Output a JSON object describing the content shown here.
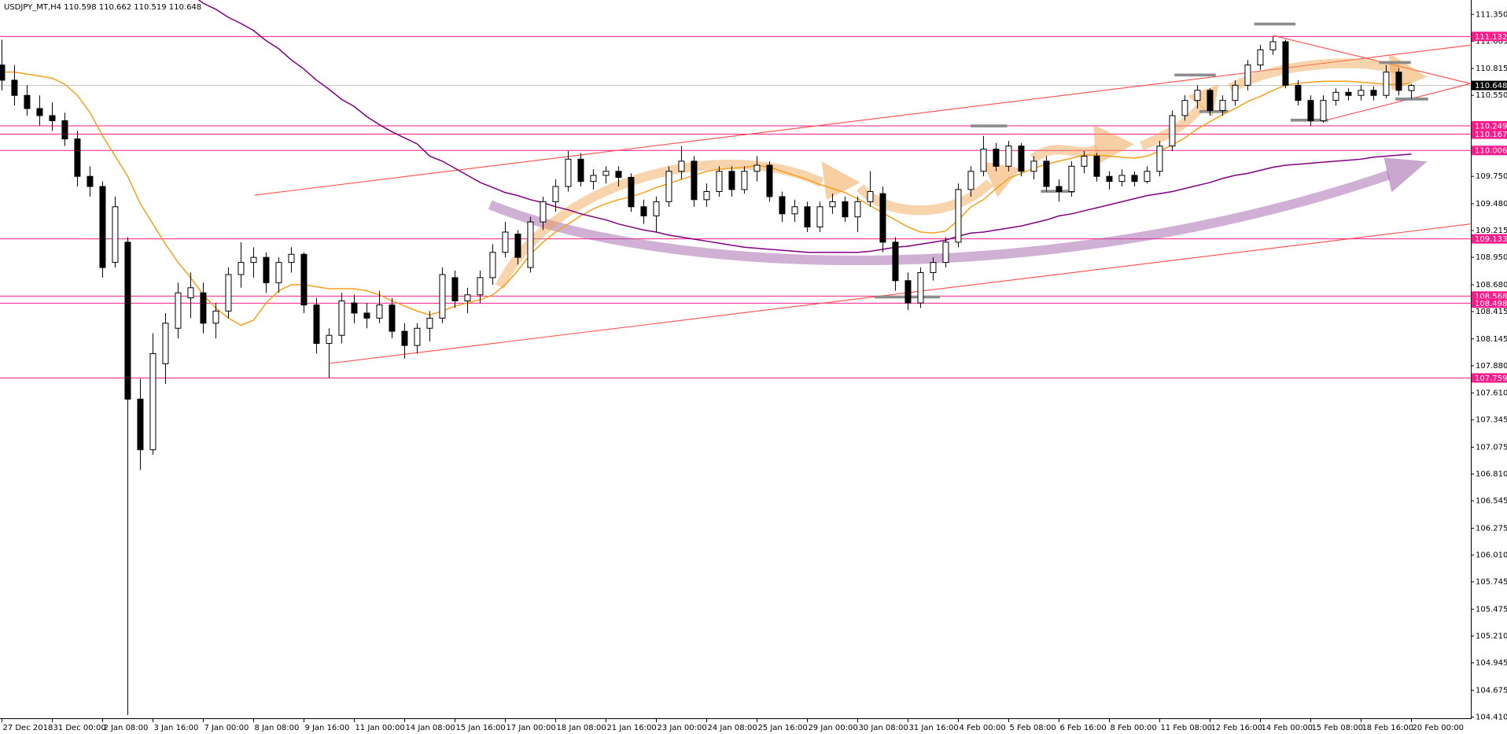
{
  "chart_data": {
    "type": "candlestick",
    "title": "USDJPY_MT,H4  110.598 110.662 110.519 110.648",
    "categories": [
      "27 Dec 2018",
      null,
      null,
      null,
      "31 Dec 00:00",
      null,
      null,
      null,
      "2 Jan 08:00",
      null,
      null,
      null,
      "3 Jan 16:00",
      null,
      null,
      null,
      "7 Jan 00:00",
      null,
      null,
      null,
      "8 Jan 08:00",
      null,
      null,
      null,
      "9 Jan 16:00",
      null,
      null,
      null,
      "11 Jan 00:00",
      null,
      null,
      null,
      "14 Jan 08:00",
      null,
      null,
      null,
      "15 Jan 16:00",
      null,
      null,
      null,
      "17 Jan 00:00",
      null,
      null,
      null,
      "18 Jan 08:00",
      null,
      null,
      null,
      "21 Jan 16:00",
      null,
      null,
      null,
      "23 Jan 00:00",
      null,
      null,
      null,
      "24 Jan 08:00",
      null,
      null,
      null,
      "25 Jan 16:00",
      null,
      null,
      null,
      "29 Jan 00:00",
      null,
      null,
      null,
      "30 Jan 08:00",
      null,
      null,
      null,
      "31 Jan 16:00",
      null,
      null,
      null,
      "4 Feb 00:00",
      null,
      null,
      null,
      "5 Feb 08:00",
      null,
      null,
      null,
      "6 Feb 16:00",
      null,
      null,
      null,
      "8 Feb 00:00",
      null,
      null,
      null,
      "11 Feb 08:00",
      null,
      null,
      null,
      "12 Feb 16:00",
      null,
      null,
      null,
      "14 Feb 00:00",
      null,
      null,
      null,
      "15 Feb 08:00",
      null,
      null,
      null,
      "18 Feb 16:00",
      null,
      null,
      null,
      "20 Feb 00:00"
    ],
    "ohlc": [
      [
        110.85,
        111.1,
        110.6,
        110.7
      ],
      [
        110.7,
        110.85,
        110.45,
        110.55
      ],
      [
        110.55,
        110.65,
        110.35,
        110.42
      ],
      [
        110.42,
        110.55,
        110.25,
        110.35
      ],
      [
        110.35,
        110.48,
        110.2,
        110.3
      ],
      [
        110.3,
        110.38,
        110.05,
        110.12
      ],
      [
        110.12,
        110.2,
        109.65,
        109.75
      ],
      [
        109.75,
        109.85,
        109.55,
        109.65
      ],
      [
        109.65,
        109.7,
        108.75,
        108.85
      ],
      [
        108.9,
        109.55,
        108.85,
        109.45
      ],
      [
        109.1,
        109.15,
        104.43,
        107.55
      ],
      [
        107.55,
        107.75,
        106.85,
        107.05
      ],
      [
        107.05,
        108.2,
        107.0,
        108.0
      ],
      [
        107.9,
        108.4,
        107.7,
        108.3
      ],
      [
        108.25,
        108.7,
        108.15,
        108.6
      ],
      [
        108.55,
        108.8,
        108.35,
        108.65
      ],
      [
        108.6,
        108.7,
        108.2,
        108.3
      ],
      [
        108.3,
        108.5,
        108.15,
        108.42
      ],
      [
        108.42,
        108.85,
        108.35,
        108.78
      ],
      [
        108.78,
        109.1,
        108.65,
        108.9
      ],
      [
        108.9,
        109.05,
        108.75,
        108.95
      ],
      [
        108.95,
        109.0,
        108.6,
        108.7
      ],
      [
        108.7,
        108.95,
        108.6,
        108.9
      ],
      [
        108.9,
        109.05,
        108.8,
        108.98
      ],
      [
        108.98,
        109.0,
        108.4,
        108.48
      ],
      [
        108.48,
        108.55,
        108.0,
        108.1
      ],
      [
        108.1,
        108.25,
        107.76,
        108.18
      ],
      [
        108.18,
        108.6,
        108.1,
        108.52
      ],
      [
        108.5,
        108.58,
        108.3,
        108.4
      ],
      [
        108.4,
        108.5,
        108.25,
        108.35
      ],
      [
        108.35,
        108.62,
        108.3,
        108.48
      ],
      [
        108.48,
        108.55,
        108.15,
        108.22
      ],
      [
        108.22,
        108.3,
        107.95,
        108.08
      ],
      [
        108.08,
        108.3,
        108.0,
        108.25
      ],
      [
        108.25,
        108.42,
        108.12,
        108.35
      ],
      [
        108.35,
        108.85,
        108.3,
        108.78
      ],
      [
        108.75,
        108.82,
        108.45,
        108.52
      ],
      [
        108.52,
        108.65,
        108.4,
        108.58
      ],
      [
        108.58,
        108.82,
        108.5,
        108.75
      ],
      [
        108.75,
        109.08,
        108.68,
        109.0
      ],
      [
        109.0,
        109.3,
        108.95,
        109.2
      ],
      [
        109.18,
        109.22,
        108.88,
        108.95
      ],
      [
        108.85,
        109.35,
        108.8,
        109.3
      ],
      [
        109.3,
        109.55,
        109.22,
        109.5
      ],
      [
        109.5,
        109.72,
        109.4,
        109.65
      ],
      [
        109.65,
        110.0,
        109.6,
        109.92
      ],
      [
        109.92,
        109.98,
        109.65,
        109.7
      ],
      [
        109.7,
        109.82,
        109.62,
        109.76
      ],
      [
        109.76,
        109.85,
        109.68,
        109.8
      ],
      [
        109.8,
        109.85,
        109.65,
        109.74
      ],
      [
        109.74,
        109.78,
        109.4,
        109.45
      ],
      [
        109.45,
        109.52,
        109.28,
        109.36
      ],
      [
        109.36,
        109.55,
        109.2,
        109.5
      ],
      [
        109.5,
        109.85,
        109.45,
        109.8
      ],
      [
        109.8,
        110.05,
        109.72,
        109.9
      ],
      [
        109.9,
        109.95,
        109.45,
        109.52
      ],
      [
        109.52,
        109.68,
        109.45,
        109.6
      ],
      [
        109.6,
        109.85,
        109.55,
        109.8
      ],
      [
        109.8,
        109.85,
        109.55,
        109.62
      ],
      [
        109.62,
        109.85,
        109.58,
        109.8
      ],
      [
        109.8,
        109.95,
        109.7,
        109.86
      ],
      [
        109.86,
        109.9,
        109.5,
        109.55
      ],
      [
        109.55,
        109.6,
        109.3,
        109.38
      ],
      [
        109.38,
        109.52,
        109.3,
        109.45
      ],
      [
        109.45,
        109.5,
        109.2,
        109.25
      ],
      [
        109.25,
        109.5,
        109.2,
        109.45
      ],
      [
        109.45,
        109.58,
        109.38,
        109.5
      ],
      [
        109.5,
        109.55,
        109.3,
        109.35
      ],
      [
        109.35,
        109.55,
        109.2,
        109.5
      ],
      [
        109.5,
        109.8,
        109.45,
        109.6
      ],
      [
        109.58,
        109.65,
        109.0,
        109.1
      ],
      [
        109.1,
        109.15,
        108.62,
        108.72
      ],
      [
        108.72,
        108.8,
        108.43,
        108.5
      ],
      [
        108.5,
        108.85,
        108.45,
        108.8
      ],
      [
        108.8,
        108.95,
        108.72,
        108.9
      ],
      [
        108.9,
        109.15,
        108.85,
        109.1
      ],
      [
        109.1,
        109.68,
        109.05,
        109.62
      ],
      [
        109.62,
        109.85,
        109.55,
        109.8
      ],
      [
        109.8,
        110.15,
        109.75,
        110.02
      ],
      [
        110.02,
        110.08,
        109.8,
        109.85
      ],
      [
        109.85,
        110.1,
        109.8,
        110.05
      ],
      [
        110.05,
        110.08,
        109.75,
        109.8
      ],
      [
        109.8,
        109.95,
        109.72,
        109.9
      ],
      [
        109.9,
        109.95,
        109.6,
        109.65
      ],
      [
        109.65,
        109.72,
        109.5,
        109.6
      ],
      [
        109.6,
        109.9,
        109.55,
        109.85
      ],
      [
        109.85,
        110.0,
        109.78,
        109.95
      ],
      [
        109.95,
        109.98,
        109.7,
        109.75
      ],
      [
        109.75,
        109.8,
        109.62,
        109.7
      ],
      [
        109.7,
        109.82,
        109.65,
        109.76
      ],
      [
        109.76,
        109.8,
        109.65,
        109.7
      ],
      [
        109.7,
        109.85,
        109.68,
        109.8
      ],
      [
        109.8,
        110.1,
        109.75,
        110.05
      ],
      [
        110.05,
        110.4,
        110.0,
        110.35
      ],
      [
        110.35,
        110.55,
        110.3,
        110.5
      ],
      [
        110.5,
        110.65,
        110.42,
        110.6
      ],
      [
        110.6,
        110.62,
        110.35,
        110.4
      ],
      [
        110.4,
        110.55,
        110.35,
        110.5
      ],
      [
        110.5,
        110.7,
        110.45,
        110.65
      ],
      [
        110.65,
        110.9,
        110.6,
        110.85
      ],
      [
        110.85,
        111.05,
        110.8,
        111.0
      ],
      [
        111.0,
        111.13,
        110.95,
        111.08
      ],
      [
        111.08,
        111.1,
        110.62,
        110.65
      ],
      [
        110.65,
        110.7,
        110.45,
        110.5
      ],
      [
        110.5,
        110.55,
        110.25,
        110.3
      ],
      [
        110.3,
        110.55,
        110.28,
        110.5
      ],
      [
        110.5,
        110.62,
        110.45,
        110.58
      ],
      [
        110.58,
        110.62,
        110.5,
        110.55
      ],
      [
        110.55,
        110.65,
        110.5,
        110.6
      ],
      [
        110.6,
        110.64,
        110.5,
        110.55
      ],
      [
        110.55,
        110.85,
        110.52,
        110.78
      ],
      [
        110.78,
        110.82,
        110.55,
        110.6
      ],
      [
        110.598,
        110.662,
        110.519,
        110.648
      ]
    ],
    "up_color": "#ffffff",
    "down_color": "#000000",
    "series": [
      {
        "color": "#f5a01a",
        "values": [
          110.78,
          110.78,
          110.76,
          110.74,
          110.72,
          110.66,
          110.55,
          110.38,
          110.15,
          109.95,
          109.75,
          109.48,
          109.28,
          109.08,
          108.9,
          108.75,
          108.58,
          108.45,
          108.35,
          108.28,
          108.33,
          108.5,
          108.62,
          108.68,
          108.68,
          108.66,
          108.64,
          108.64,
          108.64,
          108.62,
          108.58,
          108.52,
          108.47,
          108.42,
          108.38,
          108.42,
          108.47,
          108.5,
          108.53,
          108.58,
          108.68,
          108.82,
          108.98,
          109.1,
          109.2,
          109.28,
          109.36,
          109.43,
          109.48,
          109.52,
          109.55,
          109.59,
          109.64,
          109.68,
          109.72,
          109.76,
          109.8,
          109.82,
          109.83,
          109.84,
          109.86,
          109.84,
          109.8,
          109.76,
          109.72,
          109.67,
          109.63,
          109.59,
          109.53,
          109.46,
          109.39,
          109.32,
          109.25,
          109.2,
          109.19,
          109.21,
          109.32,
          109.45,
          109.52,
          109.63,
          109.73,
          109.78,
          109.83,
          109.87,
          109.9,
          109.93,
          109.96,
          109.96,
          109.95,
          109.94,
          109.93,
          109.95,
          110.0,
          110.06,
          110.13,
          110.22,
          110.29,
          110.36,
          110.42,
          110.49,
          110.54,
          110.6,
          110.65,
          110.67,
          110.68,
          110.69,
          110.69,
          110.69,
          110.68,
          110.67,
          110.66,
          110.66,
          110.67
        ]
      },
      {
        "color": "#800080",
        "values": [
          null,
          null,
          null,
          null,
          null,
          null,
          null,
          null,
          null,
          null,
          null,
          null,
          null,
          null,
          null,
          111.55,
          111.46,
          111.4,
          111.32,
          111.26,
          111.19,
          111.09,
          111.01,
          110.9,
          110.81,
          110.7,
          110.61,
          110.51,
          110.44,
          110.34,
          110.26,
          110.19,
          110.13,
          110.07,
          109.95,
          109.9,
          109.83,
          109.76,
          109.69,
          109.64,
          109.59,
          109.56,
          109.52,
          109.49,
          109.45,
          109.42,
          109.38,
          109.35,
          109.32,
          109.28,
          109.25,
          109.22,
          109.2,
          109.17,
          109.15,
          109.13,
          109.11,
          109.09,
          109.07,
          109.05,
          109.04,
          109.03,
          109.02,
          109.01,
          109.0,
          109.0,
          109.0,
          109.0,
          109.0,
          109.01,
          109.03,
          109.05,
          109.06,
          109.08,
          109.1,
          109.12,
          109.16,
          109.19,
          109.2,
          109.22,
          109.24,
          109.26,
          109.29,
          109.32,
          109.36,
          109.38,
          109.41,
          109.44,
          109.47,
          109.5,
          109.53,
          109.56,
          109.58,
          109.6,
          109.63,
          109.66,
          109.69,
          109.73,
          109.76,
          109.78,
          109.81,
          109.84,
          109.86,
          109.87,
          109.88,
          109.89,
          109.9,
          109.91,
          109.92,
          109.94,
          109.95,
          109.96,
          109.97
        ]
      }
    ],
    "levels": [
      111.132,
      110.249,
      110.167,
      110.006,
      109.133,
      108.568,
      108.498,
      107.759
    ],
    "level_color": "#ff1a8c",
    "last_price_color": "#000000",
    "ylim": [
      104.398,
      111.492
    ],
    "yticks": [
      {
        "value": 111.35,
        "label": "111.350"
      },
      {
        "value": 111.085,
        "label": "111.085"
      },
      {
        "value": 110.815,
        "label": "110.815"
      },
      {
        "value": 110.55,
        "label": "110.550"
      },
      {
        "value": 109.75,
        "label": "109.750"
      },
      {
        "value": 109.48,
        "label": "109.480"
      },
      {
        "value": 109.215,
        "label": "109.215"
      },
      {
        "value": 108.95,
        "label": "108.950"
      },
      {
        "value": 108.68,
        "label": "108.680"
      },
      {
        "value": 108.415,
        "label": "108.415"
      },
      {
        "value": 108.145,
        "label": "108.145"
      },
      {
        "value": 107.88,
        "label": "107.880"
      },
      {
        "value": 107.61,
        "label": "107.610"
      },
      {
        "value": 107.345,
        "label": "107.345"
      },
      {
        "value": 107.075,
        "label": "107.075"
      },
      {
        "value": 106.81,
        "label": "106.810"
      },
      {
        "value": 106.545,
        "label": "106.545"
      },
      {
        "value": 106.275,
        "label": "106.275"
      },
      {
        "value": 106.01,
        "label": "106.010"
      },
      {
        "value": 105.745,
        "label": "105.745"
      },
      {
        "value": 105.475,
        "label": "105.475"
      },
      {
        "value": 105.21,
        "label": "105.210"
      },
      {
        "value": 104.945,
        "label": "104.945"
      },
      {
        "value": 104.675,
        "label": "104.675"
      },
      {
        "value": 104.41,
        "label": "104.410"
      }
    ],
    "grid": false
  }
}
